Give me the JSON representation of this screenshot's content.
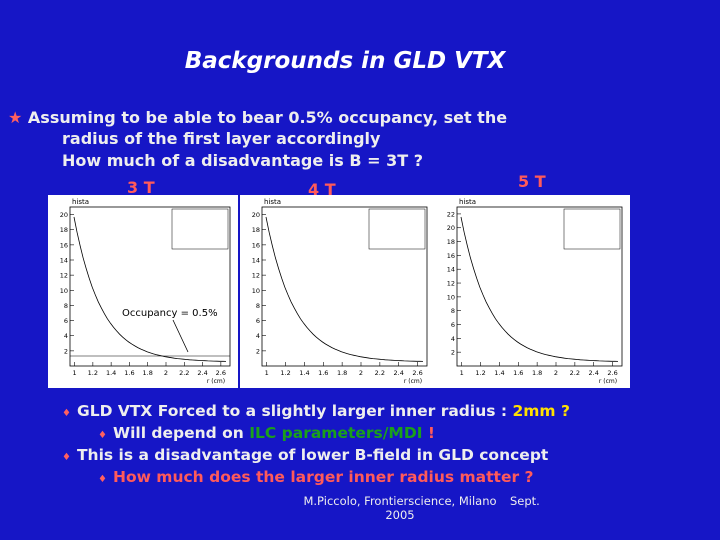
{
  "title": "Backgrounds in GLD VTX",
  "intro": [
    "Assuming to be able to bear 0.5% occupancy, set the",
    "radius of the first layer accordingly",
    "How much of a disadvantage is B = 3T ?"
  ],
  "plots": [
    {
      "label": "3 T",
      "header": "hista",
      "yticks": [
        20,
        18,
        16,
        14,
        12,
        10,
        8,
        6,
        4,
        2
      ],
      "xticks": [
        1,
        1.2,
        1.4,
        1.6,
        1.8,
        2,
        2.2,
        2.4,
        2.6
      ],
      "xlabel": "r (cm)",
      "annotation": "Occupancy = 0.5%"
    },
    {
      "label": "4 T",
      "header": "hista",
      "yticks": [
        20,
        18,
        16,
        14,
        12,
        10,
        8,
        6,
        4,
        2
      ],
      "xticks": [
        1,
        1.2,
        1.4,
        1.6,
        1.8,
        2,
        2.2,
        2.4,
        2.6
      ],
      "xlabel": "r (cm)"
    },
    {
      "label": "5 T",
      "header": "hista",
      "yticks": [
        22,
        20,
        18,
        16,
        14,
        12,
        10,
        8,
        6,
        4,
        2
      ],
      "xticks": [
        1,
        1.2,
        1.4,
        1.6,
        1.8,
        2,
        2.2,
        2.4,
        2.6
      ],
      "xlabel": "r (cm)"
    }
  ],
  "bullets": [
    {
      "text": "GLD VTX Forced to a slightly larger inner radius : ",
      "highlight": "2mm ?"
    },
    {
      "text": "Will depend on ",
      "highlight": "ILC parameters/MDI",
      "tail": " !"
    },
    {
      "text": "This is a disadvantage of lower B-field in GLD concept"
    },
    {
      "text": "How much does the larger inner radius matter ?"
    }
  ],
  "footer": {
    "author": "M.Piccolo, Frontierscience, Milano",
    "year": "2005",
    "date": "Sept."
  }
}
